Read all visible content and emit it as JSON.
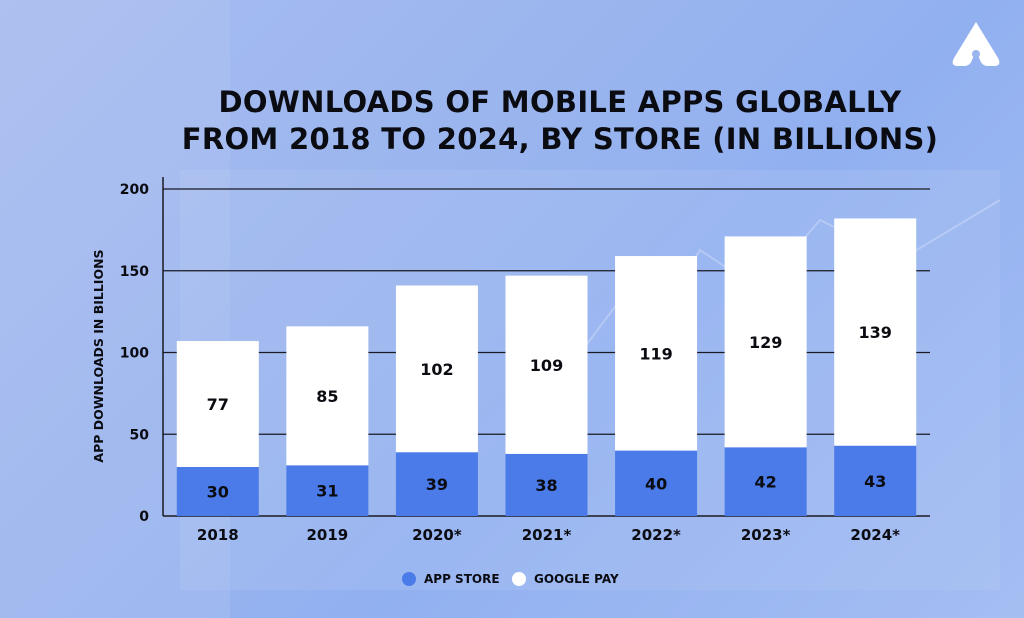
{
  "chart_data": {
    "type": "bar",
    "stacked": true,
    "title_line1": "DOWNLOADS OF MOBILE APPS GLOBALLY",
    "title_line2": "FROM 2018 TO 2024, BY STORE (IN BILLIONS)",
    "ylabel": "APP DOWNLOADS IN BILLIONS",
    "xlabel": "",
    "ylim": [
      0,
      200
    ],
    "yticks": [
      "0",
      "50",
      "100",
      "150",
      "200"
    ],
    "grid": true,
    "legend_position": "bottom-center",
    "categories": [
      "2018",
      "2019",
      "2020*",
      "2021*",
      "2022*",
      "2023*",
      "2024*"
    ],
    "series": [
      {
        "name": "APP STORE",
        "values": [
          30,
          31,
          39,
          38,
          40,
          42,
          43
        ],
        "color": "#4a7be8"
      },
      {
        "name": "GOOGLE PAY",
        "values": [
          77,
          85,
          102,
          109,
          119,
          129,
          139
        ],
        "color": "#ffffff"
      }
    ]
  },
  "colors": {
    "app_store": "#4a7be8",
    "google_pay": "#ffffff",
    "text": "#0b0b12",
    "grid": "#1a1a22"
  },
  "icons": {
    "brand": "brand-logo-icon"
  }
}
